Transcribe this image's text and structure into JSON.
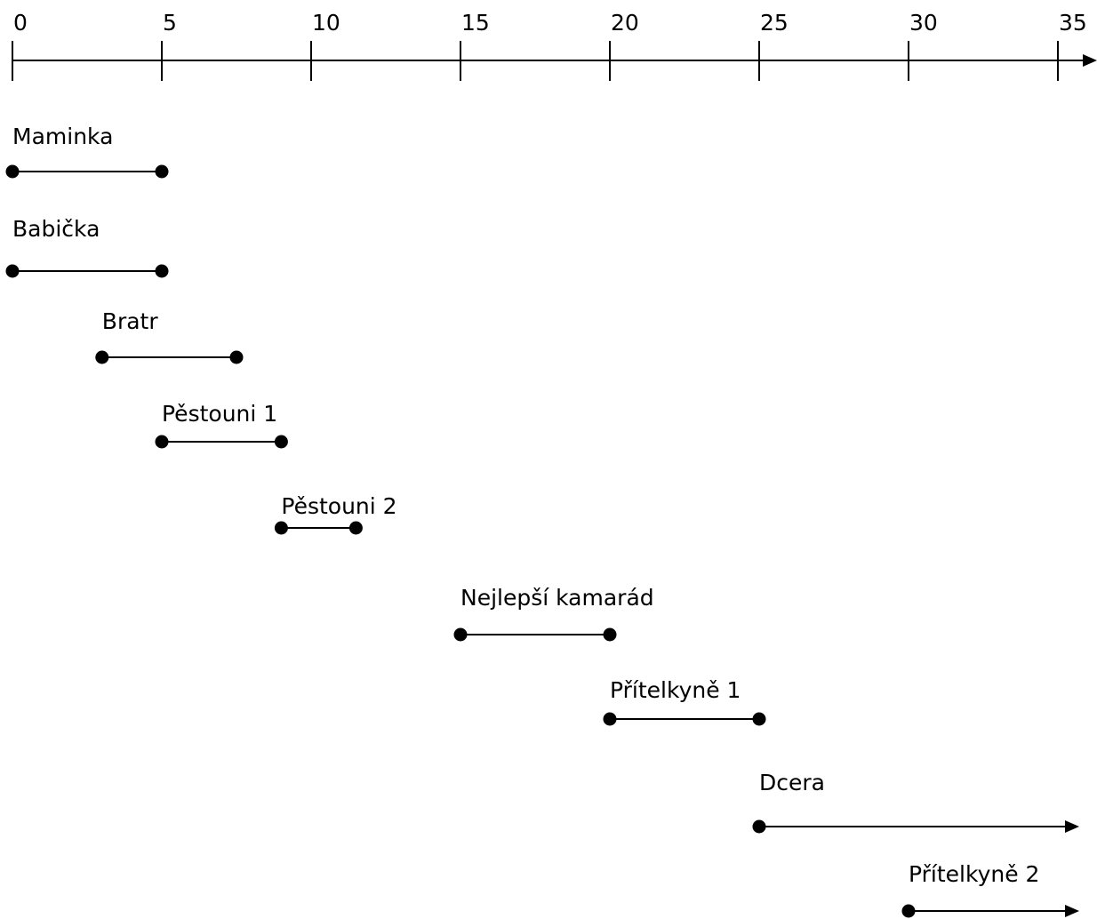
{
  "axis": {
    "ticks": [
      0,
      5,
      10,
      15,
      20,
      25,
      30,
      35
    ]
  },
  "chart_data": {
    "type": "timeline",
    "x_range": [
      0,
      36
    ],
    "intervals": [
      {
        "label": "Maminka",
        "start": 0,
        "end": 5,
        "open_ended": false
      },
      {
        "label": "Babička",
        "start": 0,
        "end": 5,
        "open_ended": false
      },
      {
        "label": "Bratr",
        "start": 3,
        "end": 7.5,
        "open_ended": false
      },
      {
        "label": "Pěstouni 1",
        "start": 5,
        "end": 9,
        "open_ended": false
      },
      {
        "label": "Pěstouni 2",
        "start": 9,
        "end": 11.5,
        "open_ended": false
      },
      {
        "label": "Nejlepší kamarád",
        "start": 15,
        "end": 20,
        "open_ended": false
      },
      {
        "label": "Přítelkyně 1",
        "start": 20,
        "end": 25,
        "open_ended": false
      },
      {
        "label": "Dcera",
        "start": 25,
        "end": null,
        "open_ended": true
      },
      {
        "label": "Přítelkyně 2",
        "start": 30,
        "end": null,
        "open_ended": true
      }
    ]
  }
}
